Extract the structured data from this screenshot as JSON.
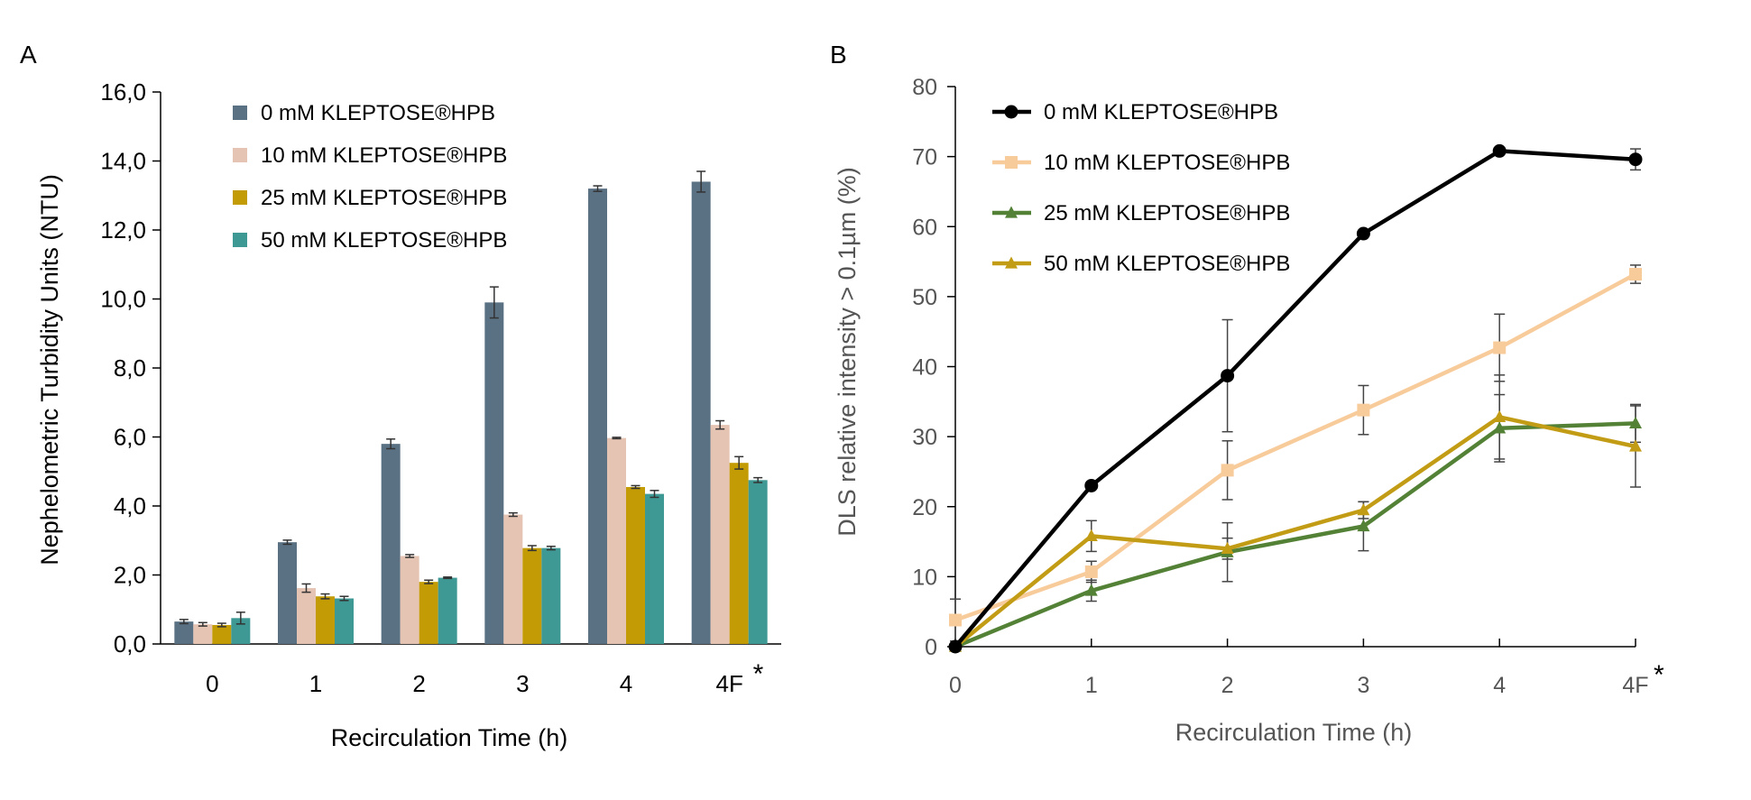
{
  "chart_data": [
    {
      "panel": "A",
      "type": "bar",
      "xlabel": "Recirculation Time (h)",
      "ylabel": "Nephelometric Turbidity Units (NTU)",
      "ylim": [
        0,
        16
      ],
      "yticks": [
        "0,0",
        "2,0",
        "4,0",
        "6,0",
        "8,0",
        "10,0",
        "12,0",
        "14,0",
        "16,0"
      ],
      "categories": [
        "0",
        "1",
        "2",
        "3",
        "4",
        "4F"
      ],
      "category_marks": [
        "",
        "",
        "",
        "",
        "",
        "*"
      ],
      "legend_position": "top-left",
      "grid": false,
      "series": [
        {
          "name": "0 mM KLEPTOSE®HPB",
          "color": "#5a7184",
          "values": [
            0.65,
            2.95,
            5.8,
            9.9,
            13.2,
            13.4
          ],
          "errors": [
            0.06,
            0.06,
            0.14,
            0.45,
            0.08,
            0.3
          ]
        },
        {
          "name": "10 mM KLEPTOSE®HPB",
          "color": "#e6c4b3",
          "values": [
            0.57,
            1.62,
            2.55,
            3.75,
            5.97,
            6.35
          ],
          "errors": [
            0.05,
            0.12,
            0.04,
            0.05,
            0.02,
            0.12
          ]
        },
        {
          "name": "25 mM KLEPTOSE®HPB",
          "color": "#c39c05",
          "values": [
            0.55,
            1.38,
            1.8,
            2.78,
            4.55,
            5.25
          ],
          "errors": [
            0.05,
            0.07,
            0.05,
            0.07,
            0.04,
            0.18
          ]
        },
        {
          "name": "50 mM KLEPTOSE®HPB",
          "color": "#3e9995",
          "values": [
            0.75,
            1.32,
            1.92,
            2.78,
            4.35,
            4.75
          ],
          "errors": [
            0.17,
            0.06,
            0.02,
            0.05,
            0.1,
            0.07
          ]
        }
      ]
    },
    {
      "panel": "B",
      "type": "line",
      "xlabel": "Recirculation Time (h)",
      "ylabel": "DLS relative intensity > 0.1µm (%)",
      "ylim": [
        0,
        80
      ],
      "yticks": [
        "0",
        "10",
        "20",
        "30",
        "40",
        "50",
        "60",
        "70",
        "80"
      ],
      "x": [
        "0",
        "1",
        "2",
        "3",
        "4",
        "4F"
      ],
      "category_marks": [
        "",
        "",
        "",
        "",
        "",
        "*"
      ],
      "legend_position": "top-left",
      "grid": false,
      "series": [
        {
          "name": "0 mM KLEPTOSE®HPB",
          "color": "#000000",
          "marker": "circle",
          "values": [
            0,
            23,
            38.7,
            59,
            70.8,
            69.6
          ],
          "errors": [
            0,
            0,
            8,
            0,
            0,
            1.5
          ]
        },
        {
          "name": "10 mM KLEPTOSE®HPB",
          "color": "#f8cb9b",
          "marker": "square",
          "values": [
            3.8,
            10.7,
            25.2,
            33.8,
            42.7,
            53.2
          ],
          "errors": [
            3,
            1.5,
            4.2,
            3.5,
            4.8,
            1.3
          ]
        },
        {
          "name": "25 mM KLEPTOSE®HPB",
          "color": "#538135",
          "marker": "triangle",
          "values": [
            0,
            8,
            13.5,
            17.2,
            31.2,
            31.9
          ],
          "errors": [
            0,
            1.5,
            4.2,
            3.5,
            4.8,
            2.7
          ]
        },
        {
          "name": "50 mM KLEPTOSE®HPB",
          "color": "#c39c16",
          "marker": "triangle",
          "values": [
            0,
            15.8,
            14,
            19.5,
            32.8,
            28.6
          ],
          "errors": [
            0,
            2.2,
            1.5,
            1.2,
            6,
            5.8
          ]
        }
      ]
    }
  ]
}
